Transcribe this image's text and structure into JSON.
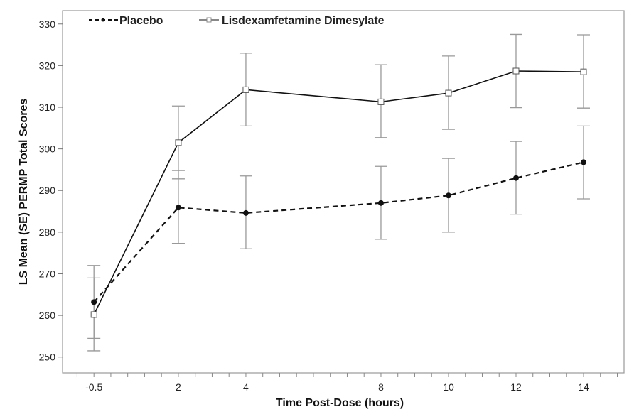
{
  "chart_data": {
    "type": "line",
    "title": "",
    "xlabel": "Time Post-Dose (hours)",
    "ylabel": "LS Mean (SE) PERMP Total Scores",
    "xlim": [
      -1.43,
      15.2
    ],
    "ylim": [
      246.2,
      333.2
    ],
    "x_ticks": [
      -0.5,
      2,
      4,
      8,
      10,
      12,
      14
    ],
    "x_tick_labels": [
      "-0.5",
      "2",
      "4",
      "8",
      "10",
      "12",
      "14"
    ],
    "y_ticks": [
      250,
      260,
      270,
      280,
      290,
      300,
      310,
      320,
      330
    ],
    "y_tick_labels": [
      "250",
      "260",
      "270",
      "280",
      "290",
      "300",
      "310",
      "320",
      "330"
    ],
    "legend_placement": "top-left",
    "grid": false,
    "x": [
      -0.5,
      2,
      4,
      8,
      10,
      12,
      14
    ],
    "series": [
      {
        "name": "Placebo",
        "style": "dashed",
        "marker": "filled-circle",
        "color": "#111111",
        "values": [
          263.2,
          285.9,
          284.6,
          287.0,
          288.8,
          293.0,
          296.8
        ],
        "upper": [
          272.0,
          294.8,
          293.5,
          295.8,
          297.7,
          301.8,
          305.5
        ],
        "lower": [
          254.5,
          277.3,
          276.0,
          278.3,
          280.0,
          284.3,
          288.0
        ]
      },
      {
        "name": "Lisdexamfetamine Dimesylate",
        "style": "solid",
        "marker": "open-square",
        "color": "#111111",
        "values": [
          260.2,
          301.5,
          314.2,
          311.3,
          313.4,
          318.7,
          318.5
        ],
        "upper": [
          269.0,
          310.3,
          323.0,
          320.2,
          322.3,
          327.5,
          327.4
        ],
        "lower": [
          251.5,
          292.8,
          305.5,
          302.7,
          304.7,
          309.9,
          309.8
        ]
      }
    ]
  }
}
